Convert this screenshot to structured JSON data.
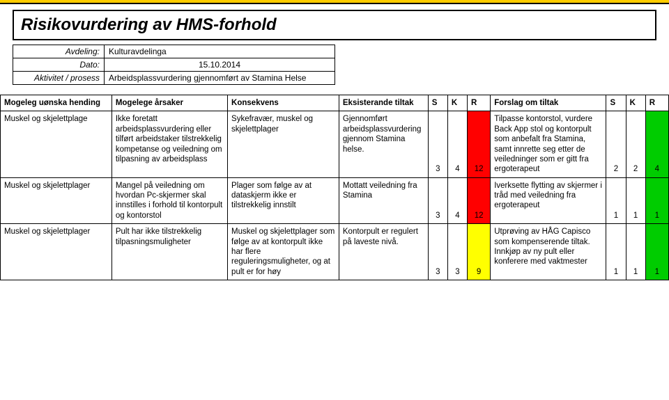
{
  "title": "Risikovurdering av HMS-forhold",
  "meta": {
    "labels": {
      "avdeling": "Avdeling:",
      "dato": "Dato:",
      "aktivitet": "Aktivitet / prosess"
    },
    "values": {
      "avdeling": "Kulturavdelinga",
      "dato": "15.10.2014",
      "aktivitet": "Arbeidsplassvurdering gjennomført av Stamina Helse"
    }
  },
  "columns": {
    "hending": "Mogeleg uønska hending",
    "arsaker": "Mogelege årsaker",
    "konsekvens": "Konsekvens",
    "eksisterande": "Eksisterande tiltak",
    "S": "S",
    "K": "K",
    "R": "R",
    "forslag": "Forslag om tiltak",
    "S2": "S",
    "K2": "K",
    "R2": "R"
  },
  "rows": [
    {
      "hending": "Muskel og skjelettplage",
      "arsaker": "Ikke foretatt arbeidsplassvurdering eller tilført arbeidstaker tilstrekkelig kompetanse og veiledning om tilpasning av arbeidsplass",
      "konsekvens": "Sykefravær, muskel og skjelettplager",
      "eksisterande": "Gjennomført arbeidsplassvurdering gjennom Stamina helse.",
      "s1": "3",
      "k1": "4",
      "r1": "12",
      "r1_color": "red",
      "forslag": "Tilpasse kontorstol, vurdere Back App stol og kontorpult som anbefalt fra Stamina, samt innrette seg etter de veiledninger som er gitt fra ergoterapeut",
      "s2": "2",
      "k2": "2",
      "r2": "4",
      "r2_color": "green"
    },
    {
      "hending": "Muskel og skjelettplager",
      "arsaker": "Mangel på veiledning om hvordan Pc-skjermer skal innstilles i forhold til kontorpult og kontorstol",
      "konsekvens": "Plager som følge av at dataskjerm ikke er tilstrekkelig innstilt",
      "eksisterande": "Mottatt veiledning fra Stamina",
      "s1": "3",
      "k1": "4",
      "r1": "12",
      "r1_color": "red",
      "forslag": "Iverksette flytting av skjermer i tråd med veiledning fra ergoterapeut",
      "s2": "1",
      "k2": "1",
      "r2": "1",
      "r2_color": "green"
    },
    {
      "hending": "Muskel og skjelettplager",
      "arsaker": "Pult har ikke tilstrekkelig tilpasningsmuligheter",
      "konsekvens": "Muskel og skjelettplager som følge av at kontorpult ikke har flere reguleringsmuligheter, og at pult er for høy",
      "eksisterande": "Kontorpult er regulert på laveste nivå.",
      "s1": "3",
      "k1": "3",
      "r1": "9",
      "r1_color": "yellow",
      "forslag": "Utprøving av HÅG Capisco som kompenserende tiltak. Innkjøp av ny pult eller konferere med vaktmester",
      "s2": "1",
      "k2": "1",
      "r2": "1",
      "r2_color": "green"
    }
  ],
  "colors": {
    "accent": "#ffcc00",
    "red": "#ff0000",
    "yellow": "#ffff00",
    "green": "#00cc00",
    "border": "#000000",
    "bg": "#ffffff"
  }
}
